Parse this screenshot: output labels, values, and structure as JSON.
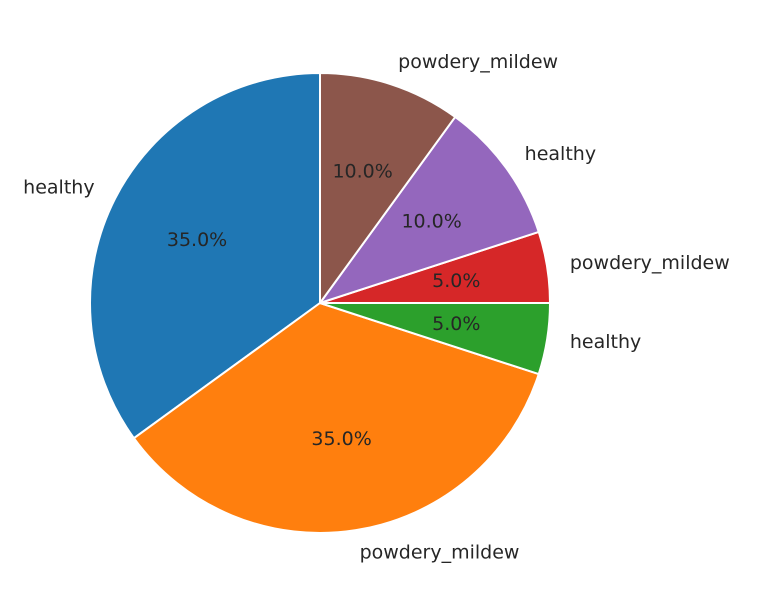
{
  "chart_data": {
    "type": "pie",
    "title": "",
    "start_angle_deg": 90,
    "direction": "counterclockwise",
    "slices": [
      {
        "label": "healthy",
        "value": 35.0,
        "pct_text": "35.0%",
        "color": "#1f77b4"
      },
      {
        "label": "powdery_mildew",
        "value": 35.0,
        "pct_text": "35.0%",
        "color": "#ff7f0e"
      },
      {
        "label": "healthy",
        "value": 5.0,
        "pct_text": "5.0%",
        "color": "#2ca02c"
      },
      {
        "label": "powdery_mildew",
        "value": 5.0,
        "pct_text": "5.0%",
        "color": "#d62728"
      },
      {
        "label": "healthy",
        "value": 10.0,
        "pct_text": "10.0%",
        "color": "#9467bd"
      },
      {
        "label": "powdery_mildew",
        "value": 10.0,
        "pct_text": "10.0%",
        "color": "#8c564b"
      }
    ]
  }
}
